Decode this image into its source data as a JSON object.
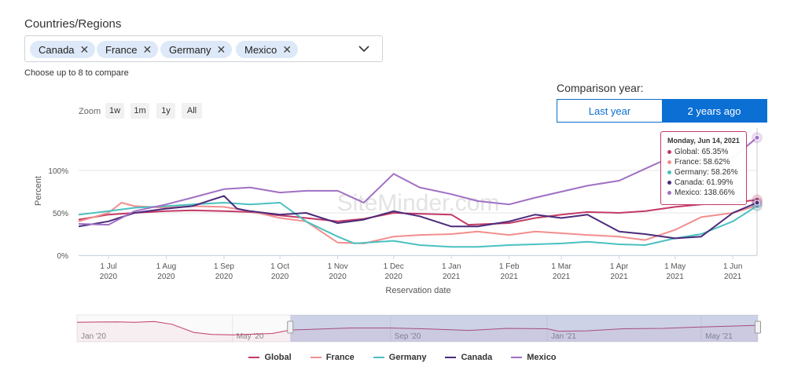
{
  "filters": {
    "label": "Countries/Regions",
    "chips": [
      "Canada",
      "France",
      "Germany",
      "Mexico"
    ],
    "remove_icon": "close-icon",
    "dropdown_icon": "chevron-down-icon",
    "hint": "Choose up to 8 to compare"
  },
  "comparison": {
    "label": "Comparison year:",
    "options": [
      "Last year",
      "2 years ago"
    ],
    "selected": "2 years ago"
  },
  "zoom": {
    "label": "Zoom",
    "buttons": [
      "1w",
      "1m",
      "1y",
      "All"
    ]
  },
  "watermark": "SiteMinder.com",
  "tooltip": {
    "date": "Monday, Jun 14, 2021",
    "rows": [
      {
        "text": "Global: 65.35%",
        "color": "#c33a66"
      },
      {
        "text": "France: 58.62%",
        "color": "#f28e8e"
      },
      {
        "text": "Germany: 58.26%",
        "color": "#4bc0c0"
      },
      {
        "text": "Canada: 61.99%",
        "color": "#4b2a7b"
      },
      {
        "text": "Mexico: 138.66%",
        "color": "#a070c4"
      }
    ]
  },
  "chart_data": {
    "type": "line",
    "xlabel": "Reservation date",
    "ylabel": "Percent",
    "ylim": [
      0,
      150
    ],
    "y_ticks": [
      {
        "v": 0,
        "label": "0%"
      },
      {
        "v": 50,
        "label": "50%"
      },
      {
        "v": 100,
        "label": "100%"
      }
    ],
    "x_range": [
      "2020-06-15",
      "2021-06-14"
    ],
    "x_ticks": [
      {
        "d": "2020-07-01",
        "l1": "1 Jul",
        "l2": "2020"
      },
      {
        "d": "2020-08-01",
        "l1": "1 Aug",
        "l2": "2020"
      },
      {
        "d": "2020-09-01",
        "l1": "1 Sep",
        "l2": "2020"
      },
      {
        "d": "2020-10-01",
        "l1": "1 Oct",
        "l2": "2020"
      },
      {
        "d": "2020-11-01",
        "l1": "1 Nov",
        "l2": "2020"
      },
      {
        "d": "2020-12-01",
        "l1": "1 Dec",
        "l2": "2020"
      },
      {
        "d": "2021-01-01",
        "l1": "1 Jan",
        "l2": "2021"
      },
      {
        "d": "2021-02-01",
        "l1": "1 Feb",
        "l2": "2021"
      },
      {
        "d": "2021-03-01",
        "l1": "1 Mar",
        "l2": "2021"
      },
      {
        "d": "2021-04-01",
        "l1": "1 Apr",
        "l2": "2021"
      },
      {
        "d": "2021-05-01",
        "l1": "1 May",
        "l2": "2021"
      },
      {
        "d": "2021-06-01",
        "l1": "1 Jun",
        "l2": "2021"
      }
    ],
    "series": [
      {
        "name": "Global",
        "color": "#c33a66",
        "points": [
          [
            "2020-06-15",
            42
          ],
          [
            "2020-07-01",
            48
          ],
          [
            "2020-07-15",
            50
          ],
          [
            "2020-08-01",
            52
          ],
          [
            "2020-08-15",
            53
          ],
          [
            "2020-09-01",
            52
          ],
          [
            "2020-09-15",
            51
          ],
          [
            "2020-10-01",
            47
          ],
          [
            "2020-10-15",
            44
          ],
          [
            "2020-11-01",
            40
          ],
          [
            "2020-11-15",
            43
          ],
          [
            "2020-12-01",
            50
          ],
          [
            "2020-12-15",
            49
          ],
          [
            "2021-01-01",
            48
          ],
          [
            "2021-01-10",
            36
          ],
          [
            "2021-02-01",
            38
          ],
          [
            "2021-02-15",
            44
          ],
          [
            "2021-03-01",
            48
          ],
          [
            "2021-03-15",
            51
          ],
          [
            "2021-04-01",
            50
          ],
          [
            "2021-04-15",
            52
          ],
          [
            "2021-05-01",
            57
          ],
          [
            "2021-05-15",
            60
          ],
          [
            "2021-06-01",
            62
          ],
          [
            "2021-06-14",
            65.35
          ]
        ]
      },
      {
        "name": "France",
        "color": "#f28e8e",
        "points": [
          [
            "2020-06-15",
            40
          ],
          [
            "2020-07-01",
            50
          ],
          [
            "2020-07-08",
            62
          ],
          [
            "2020-07-15",
            58
          ],
          [
            "2020-08-01",
            56
          ],
          [
            "2020-08-15",
            58
          ],
          [
            "2020-09-01",
            57
          ],
          [
            "2020-09-15",
            52
          ],
          [
            "2020-10-01",
            44
          ],
          [
            "2020-10-15",
            40
          ],
          [
            "2020-11-01",
            15
          ],
          [
            "2020-11-15",
            14
          ],
          [
            "2020-12-01",
            22
          ],
          [
            "2020-12-15",
            24
          ],
          [
            "2021-01-01",
            25
          ],
          [
            "2021-01-15",
            28
          ],
          [
            "2021-02-01",
            24
          ],
          [
            "2021-02-15",
            28
          ],
          [
            "2021-03-01",
            26
          ],
          [
            "2021-03-15",
            24
          ],
          [
            "2021-04-01",
            22
          ],
          [
            "2021-04-15",
            18
          ],
          [
            "2021-05-01",
            30
          ],
          [
            "2021-05-15",
            45
          ],
          [
            "2021-06-01",
            50
          ],
          [
            "2021-06-14",
            58.62
          ]
        ]
      },
      {
        "name": "Germany",
        "color": "#4bc0c0",
        "points": [
          [
            "2020-06-15",
            48
          ],
          [
            "2020-07-01",
            52
          ],
          [
            "2020-07-15",
            56
          ],
          [
            "2020-08-01",
            58
          ],
          [
            "2020-08-15",
            60
          ],
          [
            "2020-09-01",
            62
          ],
          [
            "2020-09-15",
            60
          ],
          [
            "2020-10-01",
            62
          ],
          [
            "2020-10-15",
            40
          ],
          [
            "2020-11-01",
            22
          ],
          [
            "2020-11-10",
            14
          ],
          [
            "2020-12-01",
            17
          ],
          [
            "2020-12-15",
            12
          ],
          [
            "2021-01-01",
            10
          ],
          [
            "2021-01-15",
            10
          ],
          [
            "2021-02-01",
            12
          ],
          [
            "2021-02-15",
            13
          ],
          [
            "2021-03-01",
            14
          ],
          [
            "2021-03-15",
            16
          ],
          [
            "2021-04-01",
            13
          ],
          [
            "2021-04-15",
            12
          ],
          [
            "2021-05-01",
            20
          ],
          [
            "2021-05-15",
            25
          ],
          [
            "2021-06-01",
            40
          ],
          [
            "2021-06-14",
            58.26
          ]
        ]
      },
      {
        "name": "Canada",
        "color": "#4b2a7b",
        "points": [
          [
            "2020-06-15",
            34
          ],
          [
            "2020-07-01",
            40
          ],
          [
            "2020-07-15",
            50
          ],
          [
            "2020-08-01",
            55
          ],
          [
            "2020-08-15",
            58
          ],
          [
            "2020-09-01",
            70
          ],
          [
            "2020-09-08",
            55
          ],
          [
            "2020-09-15",
            52
          ],
          [
            "2020-10-01",
            48
          ],
          [
            "2020-10-15",
            50
          ],
          [
            "2020-11-01",
            38
          ],
          [
            "2020-11-15",
            42
          ],
          [
            "2020-12-01",
            52
          ],
          [
            "2020-12-15",
            46
          ],
          [
            "2021-01-01",
            34
          ],
          [
            "2021-01-15",
            34
          ],
          [
            "2021-02-01",
            40
          ],
          [
            "2021-02-15",
            48
          ],
          [
            "2021-03-01",
            44
          ],
          [
            "2021-03-15",
            48
          ],
          [
            "2021-04-01",
            28
          ],
          [
            "2021-04-15",
            25
          ],
          [
            "2021-05-01",
            20
          ],
          [
            "2021-05-15",
            22
          ],
          [
            "2021-06-01",
            50
          ],
          [
            "2021-06-14",
            61.99
          ]
        ]
      },
      {
        "name": "Mexico",
        "color": "#a070c4",
        "points": [
          [
            "2020-06-15",
            37
          ],
          [
            "2020-07-01",
            36
          ],
          [
            "2020-07-15",
            52
          ],
          [
            "2020-08-01",
            60
          ],
          [
            "2020-08-15",
            68
          ],
          [
            "2020-09-01",
            78
          ],
          [
            "2020-09-15",
            80
          ],
          [
            "2020-10-01",
            74
          ],
          [
            "2020-10-15",
            76
          ],
          [
            "2020-11-01",
            76
          ],
          [
            "2020-11-15",
            62
          ],
          [
            "2020-12-01",
            96
          ],
          [
            "2020-12-15",
            80
          ],
          [
            "2021-01-01",
            72
          ],
          [
            "2021-01-15",
            64
          ],
          [
            "2021-02-01",
            60
          ],
          [
            "2021-02-15",
            68
          ],
          [
            "2021-03-01",
            75
          ],
          [
            "2021-03-15",
            82
          ],
          [
            "2021-04-01",
            88
          ],
          [
            "2021-04-15",
            102
          ],
          [
            "2021-05-01",
            118
          ],
          [
            "2021-05-15",
            108
          ],
          [
            "2021-06-01",
            115
          ],
          [
            "2021-06-14",
            138.66
          ]
        ]
      }
    ]
  },
  "navigator": {
    "labels": [
      {
        "d": "2020-01-01",
        "t": "Jan '20"
      },
      {
        "d": "2020-05-01",
        "t": "May '20"
      },
      {
        "d": "2020-09-01",
        "t": "Sep '20"
      },
      {
        "d": "2021-01-01",
        "t": "Jan '21"
      },
      {
        "d": "2021-05-01",
        "t": "May '21"
      }
    ],
    "range": [
      "2020-01-01",
      "2021-06-14"
    ],
    "selected": [
      "2020-06-15",
      "2021-06-14"
    ],
    "series_points": [
      [
        "2020-01-01",
        80
      ],
      [
        "2020-02-01",
        82
      ],
      [
        "2020-02-15",
        80
      ],
      [
        "2020-03-01",
        84
      ],
      [
        "2020-03-15",
        70
      ],
      [
        "2020-04-01",
        30
      ],
      [
        "2020-04-15",
        20
      ],
      [
        "2020-05-01",
        18
      ],
      [
        "2020-06-01",
        25
      ],
      [
        "2020-06-15",
        42
      ],
      [
        "2020-08-01",
        52
      ],
      [
        "2020-09-01",
        52
      ],
      [
        "2020-10-01",
        47
      ],
      [
        "2020-11-01",
        40
      ],
      [
        "2020-12-01",
        50
      ],
      [
        "2021-01-01",
        48
      ],
      [
        "2021-01-10",
        36
      ],
      [
        "2021-02-01",
        38
      ],
      [
        "2021-03-01",
        48
      ],
      [
        "2021-04-01",
        50
      ],
      [
        "2021-05-01",
        57
      ],
      [
        "2021-06-14",
        65
      ]
    ]
  },
  "legend": [
    {
      "name": "Global",
      "color": "#c33a66"
    },
    {
      "name": "France",
      "color": "#f28e8e"
    },
    {
      "name": "Germany",
      "color": "#4bc0c0"
    },
    {
      "name": "Canada",
      "color": "#4b2a7b"
    },
    {
      "name": "Mexico",
      "color": "#a070c4"
    }
  ]
}
